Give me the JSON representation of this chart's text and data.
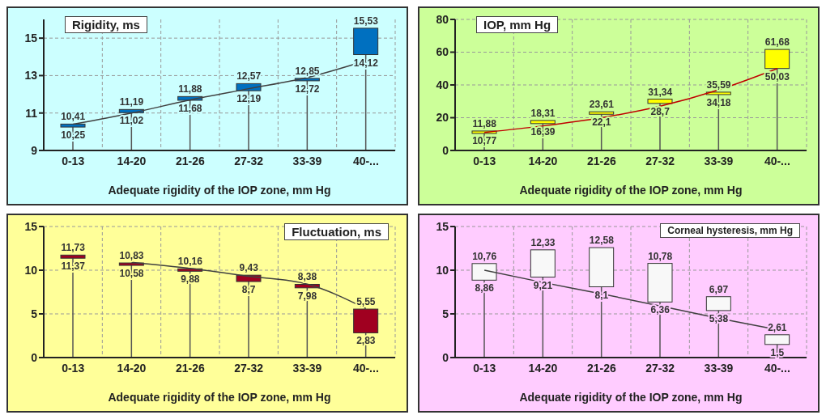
{
  "chart_data": [
    {
      "type": "bar",
      "title": "Rigidity, ms",
      "xlabel": "Adequate rigidity of the IOP zone, mm Hg",
      "categories": [
        "0-13",
        "14-20",
        "21-26",
        "27-32",
        "33-39",
        "40-..."
      ],
      "series": [
        {
          "base": [
            10.25,
            11.02,
            11.68,
            12.19,
            12.72,
            14.12
          ],
          "color": "#0070c0",
          "values": [
            0.16,
            0.17,
            0.2,
            0.38,
            0.13,
            1.41
          ]
        },
        {
          "type": "line",
          "color": "#404040",
          "values": [
            10.4,
            11.0,
            11.7,
            12.3,
            12.9,
            13.8
          ]
        }
      ],
      "ylim": [
        9,
        16
      ],
      "yticks": [
        9,
        11,
        13,
        15
      ],
      "grid": true,
      "marker": "none",
      "annotations": [
        {
          "text": "10,41",
          "x": "0-13",
          "y": 10.41
        },
        {
          "text": "10,25",
          "x": "0-13",
          "y": 10.25
        },
        {
          "text": "11,19",
          "x": "14-20",
          "y": 11.19
        },
        {
          "text": "11,02",
          "x": "14-20",
          "y": 11.02
        },
        {
          "text": "11,88",
          "x": "21-26",
          "y": 11.88
        },
        {
          "text": "11,68",
          "x": "21-26",
          "y": 11.68
        },
        {
          "text": "12,57",
          "x": "27-32",
          "y": 12.57
        },
        {
          "text": "12,19",
          "x": "27-32",
          "y": 12.19
        },
        {
          "text": "12,85",
          "x": "33-39",
          "y": 12.85
        },
        {
          "text": "12,72",
          "x": "33-39",
          "y": 12.72
        },
        {
          "text": "15,53",
          "x": "40-...",
          "y": 15.53
        },
        {
          "text": "14,12",
          "x": "40-...",
          "y": 14.12
        }
      ]
    },
    {
      "type": "bar",
      "title": "IOP, mm Hg",
      "xlabel": "Adequate rigidity of the IOP zone, mm Hg",
      "categories": [
        "0-13",
        "14-20",
        "21-26",
        "27-32",
        "33-39",
        "40-..."
      ],
      "series": [
        {
          "base": [
            10.77,
            16.39,
            22.1,
            28.7,
            34.18,
            50.03
          ],
          "color": "#ffff00",
          "values": [
            1.11,
            1.92,
            1.51,
            2.64,
            1.41,
            11.65
          ]
        },
        {
          "type": "line",
          "color": "#c00000",
          "values": [
            11,
            15,
            20,
            27,
            37,
            50
          ]
        }
      ],
      "ylim": [
        0,
        80
      ],
      "yticks": [
        0,
        20,
        40,
        60,
        80
      ],
      "grid": true,
      "marker": "none",
      "annotations": [
        {
          "text": "11,88",
          "x": "0-13",
          "y": 11.88
        },
        {
          "text": "10,77",
          "x": "0-13",
          "y": 10.77
        },
        {
          "text": "18,31",
          "x": "14-20",
          "y": 18.31
        },
        {
          "text": "16,39",
          "x": "14-20",
          "y": 16.39
        },
        {
          "text": "23,61",
          "x": "21-26",
          "y": 23.61
        },
        {
          "text": "22,1",
          "x": "21-26",
          "y": 22.1
        },
        {
          "text": "31,34",
          "x": "27-32",
          "y": 31.34
        },
        {
          "text": "28,7",
          "x": "27-32",
          "y": 28.7
        },
        {
          "text": "35,59",
          "x": "33-39",
          "y": 35.59
        },
        {
          "text": "34,18",
          "x": "33-39",
          "y": 34.18
        },
        {
          "text": "61,68",
          "x": "40-...",
          "y": 61.68
        },
        {
          "text": "50,03",
          "x": "40-...",
          "y": 50.03
        }
      ]
    },
    {
      "type": "bar",
      "title": "Fluctuation, ms",
      "xlabel": "Adequate rigidity of the IOP zone, mm Hg",
      "categories": [
        "0-13",
        "14-20",
        "21-26",
        "27-32",
        "33-39",
        "40-..."
      ],
      "series": [
        {
          "base": [
            11.37,
            10.58,
            9.88,
            8.7,
            7.98,
            2.83
          ],
          "color": "#a00020",
          "values": [
            0.36,
            0.25,
            0.28,
            0.73,
            0.4,
            2.72
          ]
        },
        {
          "type": "line",
          "color": "#404040",
          "values": [
            null,
            10.9,
            10.2,
            9.3,
            8.4,
            5.6
          ]
        }
      ],
      "ylim": [
        0,
        15
      ],
      "yticks": [
        0,
        5,
        10,
        15
      ],
      "grid": true,
      "marker": "none",
      "annotations": [
        {
          "text": "11,73",
          "x": "0-13",
          "y": 11.73
        },
        {
          "text": "11,37",
          "x": "0-13",
          "y": 11.37
        },
        {
          "text": "10,83",
          "x": "14-20",
          "y": 10.83
        },
        {
          "text": "10,58",
          "x": "14-20",
          "y": 10.58
        },
        {
          "text": "10,16",
          "x": "21-26",
          "y": 10.16
        },
        {
          "text": "9,88",
          "x": "21-26",
          "y": 9.88
        },
        {
          "text": "9,43",
          "x": "27-32",
          "y": 9.43
        },
        {
          "text": "8,7",
          "x": "27-32",
          "y": 8.7
        },
        {
          "text": "8,38",
          "x": "33-39",
          "y": 8.38
        },
        {
          "text": "7,98",
          "x": "33-39",
          "y": 7.98
        },
        {
          "text": "5,55",
          "x": "40-...",
          "y": 5.55
        },
        {
          "text": "2,83",
          "x": "40-...",
          "y": 2.83
        }
      ]
    },
    {
      "type": "bar",
      "title": "Corneal  hysteresis, mm Hg",
      "xlabel": "Adequate rigidity of the IOP zone, mm Hg",
      "categories": [
        "0-13",
        "14-20",
        "21-26",
        "27-32",
        "33-39",
        "40-..."
      ],
      "series": [
        {
          "base": [
            8.86,
            9.21,
            8.1,
            6.36,
            5.38,
            1.5
          ],
          "color": "#f8f8f8",
          "values": [
            1.9,
            3.12,
            4.48,
            4.42,
            1.59,
            1.11
          ]
        },
        {
          "type": "line",
          "color": "#404040",
          "values": [
            10.0,
            8.6,
            7.3,
            5.9,
            4.5,
            3.2
          ]
        }
      ],
      "ylim": [
        0,
        15
      ],
      "yticks": [
        0,
        5,
        10,
        15
      ],
      "grid": true,
      "marker": "none",
      "annotations": [
        {
          "text": "10,76",
          "x": "0-13",
          "y": 10.76
        },
        {
          "text": "8,86",
          "x": "0-13",
          "y": 8.86
        },
        {
          "text": "12,33",
          "x": "14-20",
          "y": 12.33
        },
        {
          "text": "9,21",
          "x": "14-20",
          "y": 9.21
        },
        {
          "text": "12,58",
          "x": "21-26",
          "y": 12.58
        },
        {
          "text": "8,1",
          "x": "21-26",
          "y": 8.1
        },
        {
          "text": "10,78",
          "x": "27-32",
          "y": 10.78
        },
        {
          "text": "6,36",
          "x": "27-32",
          "y": 6.36
        },
        {
          "text": "6,97",
          "x": "33-39",
          "y": 6.97
        },
        {
          "text": "5,38",
          "x": "33-39",
          "y": 5.38
        },
        {
          "text": "2,61",
          "x": "40-...",
          "y": 2.61
        },
        {
          "text": "1,5",
          "x": "40-...",
          "y": 1.5
        }
      ]
    }
  ]
}
